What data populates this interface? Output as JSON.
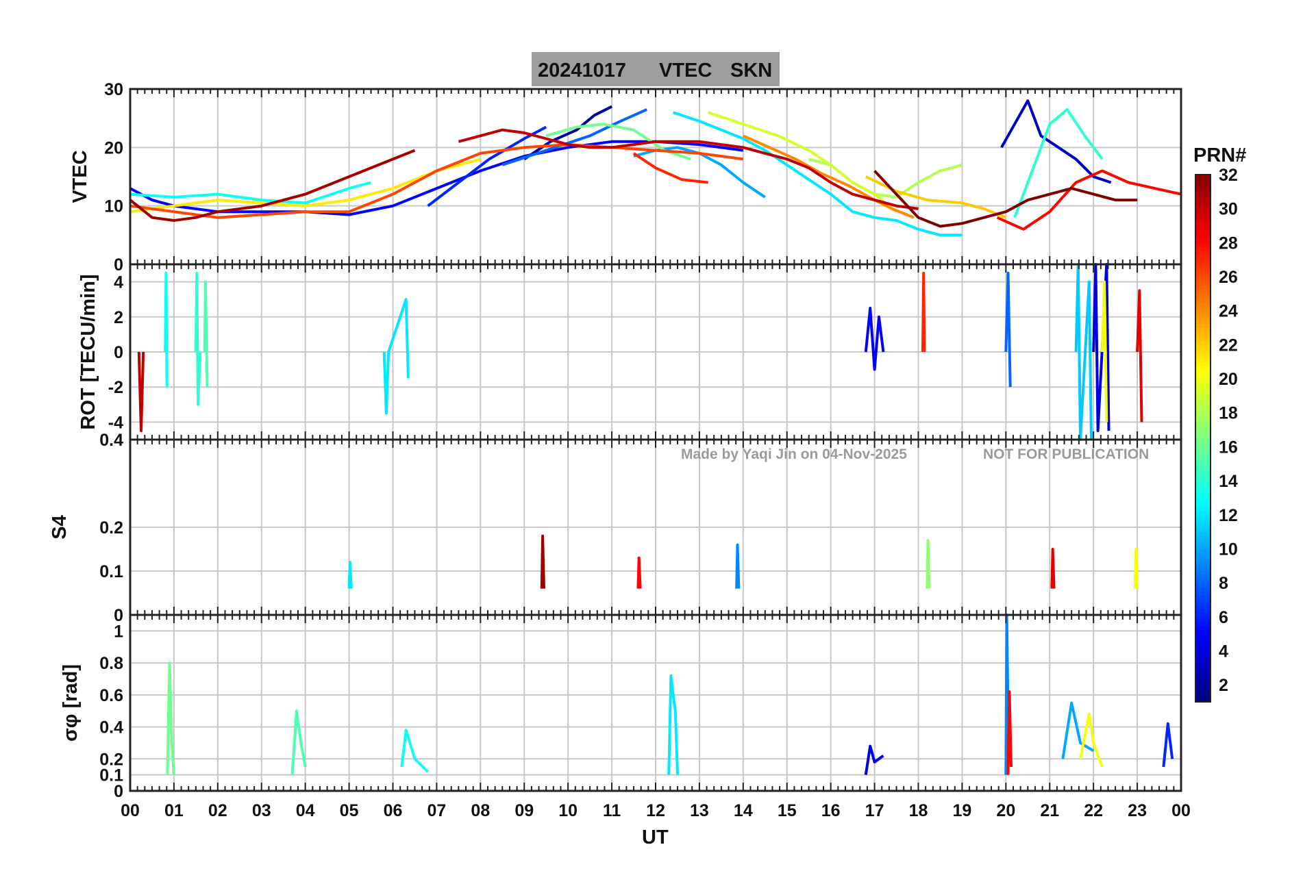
{
  "title_box": {
    "date": "20241017",
    "quantity": "VTEC",
    "station": "SKN",
    "background": "#9e9e9e"
  },
  "watermark": {
    "credit": "Made by Yaqi Jin on 04-Nov-2025",
    "notice": "NOT FOR PUBLICATION"
  },
  "colorbar": {
    "label": "PRN#",
    "colormap": "jet",
    "range": [
      1,
      32
    ],
    "ticks": [
      2,
      4,
      6,
      8,
      10,
      12,
      14,
      16,
      18,
      20,
      22,
      24,
      26,
      28,
      30,
      32
    ]
  },
  "chart_data": [
    {
      "type": "line",
      "panel": "vtec",
      "ylabel": "VTEC",
      "ylim": [
        0,
        30
      ],
      "yticks": [
        0,
        10,
        20,
        30
      ],
      "x_range_hours_ut": [
        0,
        24
      ],
      "series": [
        {
          "prn": 2,
          "x": [
            9.0,
            9.6,
            10.2,
            10.6,
            11.0
          ],
          "y": [
            18,
            21,
            23,
            25.5,
            27
          ]
        },
        {
          "prn": 5,
          "x": [
            0,
            0.5,
            1,
            2,
            3,
            4,
            5,
            6,
            7,
            8,
            9,
            10,
            11,
            12,
            13,
            14
          ],
          "y": [
            13,
            11,
            10,
            9,
            9,
            9,
            8.5,
            10,
            13,
            16,
            18.5,
            20,
            21,
            21,
            20.5,
            19.5
          ]
        },
        {
          "prn": 6,
          "x": [
            6.8,
            7.5,
            8.2,
            9,
            9.5
          ],
          "y": [
            10,
            14,
            18,
            21.5,
            23.5
          ]
        },
        {
          "prn": 3,
          "x": [
            19.9,
            20.2,
            20.5,
            20.8,
            21.2,
            21.6,
            22.0,
            22.4
          ],
          "y": [
            20,
            24,
            28,
            22,
            20,
            18,
            15,
            14
          ]
        },
        {
          "prn": 8,
          "x": [
            8.5,
            9.5,
            10.5,
            11.2,
            11.8
          ],
          "y": [
            17,
            19.5,
            22,
            24.5,
            26.5
          ]
        },
        {
          "prn": 10,
          "x": [
            11.5,
            12,
            12.5,
            13,
            13.5,
            14,
            14.5
          ],
          "y": [
            18.5,
            19.5,
            20,
            19,
            17,
            14,
            11.5
          ]
        },
        {
          "prn": 12,
          "x": [
            12.4,
            13,
            13.5,
            14,
            14.5,
            15,
            15.5,
            16,
            16.5,
            17,
            17.5,
            18,
            18.5,
            19
          ],
          "y": [
            26,
            24.5,
            23,
            21.5,
            19.5,
            17,
            14.5,
            12,
            9,
            8,
            7.5,
            6,
            5,
            5
          ]
        },
        {
          "prn": 13,
          "x": [
            0,
            1,
            2,
            3,
            4,
            5,
            5.5
          ],
          "y": [
            12,
            11.5,
            12,
            11,
            10.5,
            13,
            14
          ]
        },
        {
          "prn": 14,
          "x": [
            20.2,
            20.6,
            21.0,
            21.4,
            21.8,
            22.2
          ],
          "y": [
            8,
            16,
            24,
            26.5,
            22,
            18
          ]
        },
        {
          "prn": 16,
          "x": [
            9.5,
            10.2,
            10.8,
            11.5,
            12.2,
            12.8
          ],
          "y": [
            22,
            23.5,
            24,
            23,
            19.5,
            18
          ]
        },
        {
          "prn": 18,
          "x": [
            15.5,
            16,
            16.5,
            17,
            17.5,
            18,
            18.5,
            19
          ],
          "y": [
            18,
            17,
            14,
            12,
            11.5,
            14,
            16,
            17
          ]
        },
        {
          "prn": 19,
          "x": [
            13.2,
            14,
            14.8,
            15.5,
            16,
            16.5,
            17,
            17.5
          ],
          "y": [
            26,
            24,
            22,
            19.5,
            17,
            14,
            12,
            9
          ]
        },
        {
          "prn": 21,
          "x": [
            0,
            1,
            2,
            3,
            4,
            5,
            6,
            7,
            8
          ],
          "y": [
            9,
            10,
            11,
            10.5,
            10,
            11,
            13,
            16,
            18
          ]
        },
        {
          "prn": 22,
          "x": [
            16.8,
            17.5,
            18.2,
            19,
            19.5,
            20
          ],
          "y": [
            15,
            12.5,
            11,
            10.5,
            9.5,
            8
          ]
        },
        {
          "prn": 24,
          "x": [
            14,
            14.6,
            15.2,
            15.8,
            16.4,
            17,
            17.4,
            17.9
          ],
          "y": [
            22,
            20,
            18,
            15.5,
            13.5,
            11,
            9.5,
            8
          ]
        },
        {
          "prn": 26,
          "x": [
            0,
            1,
            2,
            3,
            4,
            5,
            6,
            7,
            8,
            9,
            10,
            11,
            12,
            13,
            14
          ],
          "y": [
            10,
            9,
            8,
            8.5,
            9,
            9,
            12,
            16,
            19,
            20,
            20.5,
            20,
            19.5,
            19,
            18
          ]
        },
        {
          "prn": 27,
          "x": [
            11.5,
            12,
            12.6,
            13.2
          ],
          "y": [
            19,
            16.5,
            14.5,
            14
          ]
        },
        {
          "prn": 28,
          "x": [
            19.8,
            20.4,
            21,
            21.6,
            22.2,
            22.8,
            23.4,
            24
          ],
          "y": [
            8,
            6,
            9,
            14,
            16,
            14,
            13,
            12
          ]
        },
        {
          "prn": 30,
          "x": [
            7.5,
            8,
            8.5,
            9,
            9.5,
            10,
            10.5,
            11,
            11.5,
            12,
            12.5,
            13,
            13.5,
            14,
            14.5,
            15,
            15.5,
            16,
            16.5,
            17,
            17.5,
            18
          ],
          "y": [
            21,
            22,
            23,
            22.5,
            21.5,
            20.5,
            20,
            20,
            20.5,
            21,
            21,
            21,
            20.5,
            20,
            19,
            18,
            16.5,
            14,
            12,
            11,
            10,
            9.5
          ]
        },
        {
          "prn": 31,
          "x": [
            0,
            0.5,
            1,
            1.5,
            2,
            3,
            4,
            5,
            6,
            6.5
          ],
          "y": [
            11,
            8,
            7.5,
            8,
            9,
            10,
            12,
            15,
            18,
            19.5
          ]
        },
        {
          "prn": 32,
          "x": [
            17,
            17.5,
            18,
            18.5,
            19,
            19.5,
            20,
            20.5,
            21,
            21.5,
            22,
            22.5,
            23
          ],
          "y": [
            16,
            12,
            8,
            6.5,
            7,
            8,
            9,
            11,
            12,
            13,
            12,
            11,
            11
          ]
        }
      ]
    },
    {
      "type": "line",
      "panel": "rot",
      "ylabel": "ROT [TECU/min]",
      "ylim": [
        -5,
        5
      ],
      "yticks": [
        -4,
        -2,
        0,
        2,
        4
      ],
      "x_range_hours_ut": [
        0,
        24
      ],
      "series": [
        {
          "prn": 13,
          "x": [
            0.8,
            0.82,
            0.84
          ],
          "y": [
            0,
            4.5,
            -2
          ]
        },
        {
          "prn": 14,
          "x": [
            1.5,
            1.52,
            1.55,
            1.6
          ],
          "y": [
            0,
            4.5,
            -3,
            0
          ]
        },
        {
          "prn": 15,
          "x": [
            1.7,
            1.72,
            1.76
          ],
          "y": [
            0,
            4,
            -2
          ]
        },
        {
          "prn": 30,
          "x": [
            0.2,
            0.25,
            0.3
          ],
          "y": [
            0,
            -4.5,
            0
          ]
        },
        {
          "prn": 12,
          "x": [
            5.8,
            5.85,
            5.9,
            6.3,
            6.35
          ],
          "y": [
            0,
            -3.5,
            0,
            3,
            -1.5
          ]
        },
        {
          "prn": 5,
          "x": [
            16.8,
            16.9,
            17.0,
            17.1,
            17.2
          ],
          "y": [
            0,
            2.5,
            -1,
            2,
            0
          ]
        },
        {
          "prn": 27,
          "x": [
            18.1,
            18.12,
            18.14
          ],
          "y": [
            0,
            4.5,
            0
          ]
        },
        {
          "prn": 8,
          "x": [
            20.0,
            20.05,
            20.1
          ],
          "y": [
            0,
            4.5,
            -2
          ]
        },
        {
          "prn": 4,
          "x": [
            22.0,
            22.05,
            22.1,
            22.3,
            22.35
          ],
          "y": [
            0,
            5,
            -4.5,
            5,
            -4.5
          ]
        },
        {
          "prn": 11,
          "x": [
            21.6,
            21.65,
            21.7,
            21.9,
            21.95
          ],
          "y": [
            0,
            5,
            -5,
            4,
            -5
          ]
        },
        {
          "prn": 20,
          "x": [
            22.2,
            22.25,
            22.3
          ],
          "y": [
            0,
            4,
            -4
          ]
        },
        {
          "prn": 29,
          "x": [
            23.0,
            23.05,
            23.1
          ],
          "y": [
            0,
            3.5,
            -4
          ]
        }
      ]
    },
    {
      "type": "line",
      "panel": "s4",
      "ylabel": "S4",
      "ylim": [
        0,
        0.4
      ],
      "yticks": [
        0,
        0.1,
        0.2,
        0.4
      ],
      "x_range_hours_ut": [
        0,
        24
      ],
      "series": [
        {
          "prn": 31,
          "x": [
            9.4,
            9.42,
            9.45
          ],
          "y": [
            0.06,
            0.18,
            0.06
          ]
        },
        {
          "prn": 9,
          "x": [
            13.85,
            13.87,
            13.9
          ],
          "y": [
            0.06,
            0.16,
            0.06
          ]
        },
        {
          "prn": 17,
          "x": [
            18.2,
            18.22,
            18.25
          ],
          "y": [
            0.06,
            0.17,
            0.06
          ]
        },
        {
          "prn": 28,
          "x": [
            11.6,
            11.62,
            11.65
          ],
          "y": [
            0.06,
            0.13,
            0.06
          ]
        },
        {
          "prn": 12,
          "x": [
            5.0,
            5.02,
            5.05
          ],
          "y": [
            0.06,
            0.12,
            0.06
          ]
        },
        {
          "prn": 29,
          "x": [
            21.05,
            21.07,
            21.1
          ],
          "y": [
            0.06,
            0.15,
            0.06
          ]
        },
        {
          "prn": 20,
          "x": [
            22.95,
            22.97,
            23.0
          ],
          "y": [
            0.06,
            0.15,
            0.06
          ]
        }
      ]
    },
    {
      "type": "line",
      "panel": "sigma_phi",
      "ylabel": "σφ [rad]",
      "ylim": [
        0,
        1.1
      ],
      "yticks": [
        0,
        0.1,
        0.2,
        0.4,
        0.6,
        0.8,
        1
      ],
      "x_range_hours_ut": [
        0,
        24
      ],
      "series": [
        {
          "prn": 16,
          "x": [
            0.85,
            0.9,
            0.95,
            1.0
          ],
          "y": [
            0.1,
            0.8,
            0.3,
            0.1
          ]
        },
        {
          "prn": 12,
          "x": [
            12.3,
            12.35,
            12.4,
            12.45,
            12.5
          ],
          "y": [
            0.1,
            0.72,
            0.6,
            0.5,
            0.1
          ]
        },
        {
          "prn": 13,
          "x": [
            6.2,
            6.3,
            6.5,
            6.8
          ],
          "y": [
            0.15,
            0.38,
            0.2,
            0.12
          ]
        },
        {
          "prn": 15,
          "x": [
            3.7,
            3.8,
            3.9,
            4.0
          ],
          "y": [
            0.1,
            0.5,
            0.3,
            0.15
          ]
        },
        {
          "prn": 4,
          "x": [
            16.8,
            16.9,
            17.0,
            17.2
          ],
          "y": [
            0.1,
            0.28,
            0.18,
            0.22
          ]
        },
        {
          "prn": 9,
          "x": [
            20.0,
            20.02,
            20.05,
            20.1
          ],
          "y": [
            0.1,
            1.1,
            0.5,
            0.2
          ]
        },
        {
          "prn": 28,
          "x": [
            20.05,
            20.08,
            20.12
          ],
          "y": [
            0.1,
            0.62,
            0.15
          ]
        },
        {
          "prn": 10,
          "x": [
            21.3,
            21.5,
            21.7,
            22.0
          ],
          "y": [
            0.2,
            0.55,
            0.3,
            0.25
          ]
        },
        {
          "prn": 20,
          "x": [
            21.7,
            21.9,
            22.0,
            22.2
          ],
          "y": [
            0.2,
            0.48,
            0.3,
            0.15
          ]
        },
        {
          "prn": 6,
          "x": [
            23.6,
            23.7,
            23.8
          ],
          "y": [
            0.15,
            0.42,
            0.2
          ]
        }
      ]
    }
  ],
  "shared_x": {
    "xlabel": "UT",
    "ticks": [
      "00",
      "01",
      "02",
      "03",
      "04",
      "05",
      "06",
      "07",
      "08",
      "09",
      "10",
      "11",
      "12",
      "13",
      "14",
      "15",
      "16",
      "17",
      "18",
      "19",
      "20",
      "21",
      "22",
      "23",
      "00"
    ]
  }
}
